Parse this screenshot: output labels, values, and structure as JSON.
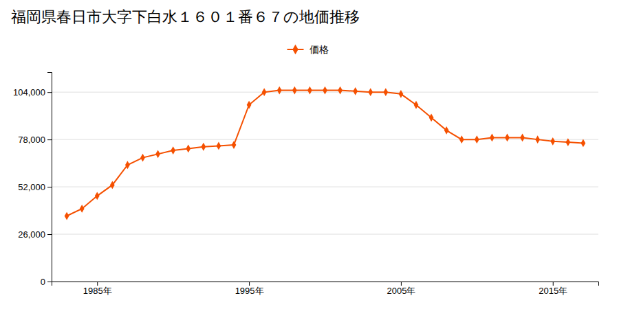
{
  "chart_data": {
    "type": "line",
    "title": "福岡県春日市大字下白水１６０１番６７の地価推移",
    "x": [
      1983,
      1984,
      1985,
      1986,
      1987,
      1988,
      1989,
      1990,
      1991,
      1992,
      1993,
      1994,
      1995,
      1996,
      1997,
      1998,
      1999,
      2000,
      2001,
      2002,
      2003,
      2004,
      2005,
      2006,
      2007,
      2008,
      2009,
      2010,
      2011,
      2012,
      2013,
      2014,
      2015,
      2016,
      2017
    ],
    "series": [
      {
        "name": "価格",
        "color": "#f55000",
        "marker": "diamond",
        "values": [
          36000,
          40000,
          47000,
          53000,
          64000,
          68000,
          70000,
          72000,
          73000,
          74000,
          74500,
          75000,
          97000,
          104000,
          105000,
          105000,
          105000,
          105000,
          105000,
          104500,
          104000,
          104000,
          103000,
          97000,
          90000,
          83000,
          78000,
          78000,
          79000,
          79000,
          79000,
          78000,
          77000,
          76500,
          76000
        ]
      }
    ],
    "xlim": [
      1982,
      2018
    ],
    "xticks": [
      {
        "value": 1985,
        "label": "1985年"
      },
      {
        "value": 1995,
        "label": "1995年"
      },
      {
        "value": 2005,
        "label": "2005年"
      },
      {
        "value": 2015,
        "label": "2015年"
      }
    ],
    "ylim": [
      0,
      115000
    ],
    "yticks": [
      0,
      {
        "value": 26000,
        "label": "26,000"
      },
      {
        "value": 52000,
        "label": "52,000"
      },
      {
        "value": 78000,
        "label": "78,000"
      },
      {
        "value": 104000,
        "label": "104,000"
      }
    ],
    "grid": "y",
    "legend": "top"
  }
}
